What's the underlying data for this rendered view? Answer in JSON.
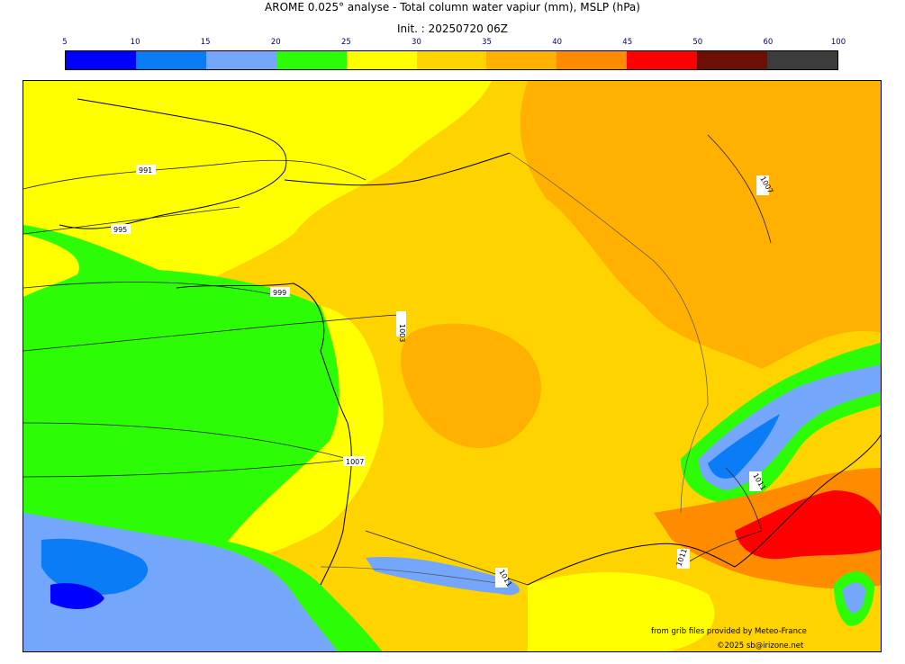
{
  "title": "AROME 0.025° analyse - Total column water vapiur (mm), MSLP (hPa)",
  "subtitle": "Init. : 20250720 06Z",
  "colorbar": {
    "ticks": [
      "5",
      "10",
      "15",
      "20",
      "25",
      "30",
      "35",
      "40",
      "45",
      "50",
      "60",
      "100"
    ],
    "colors": [
      "#0000ff",
      "#0a7cf5",
      "#74a6fc",
      "#2dfc07",
      "#ffff00",
      "#ffd300",
      "#ffb000",
      "#ff8c00",
      "#ff0000",
      "#6e0f05",
      "#3c3c3c"
    ]
  },
  "isobar_labels": [
    "991",
    "995",
    "999",
    "1003",
    "1007",
    "1011",
    "1011",
    "1011",
    "1007",
    "1007"
  ],
  "credits": {
    "line1": "from grib files provided by Meteo-France",
    "line2": "©2025 sb@irizone.net"
  }
}
